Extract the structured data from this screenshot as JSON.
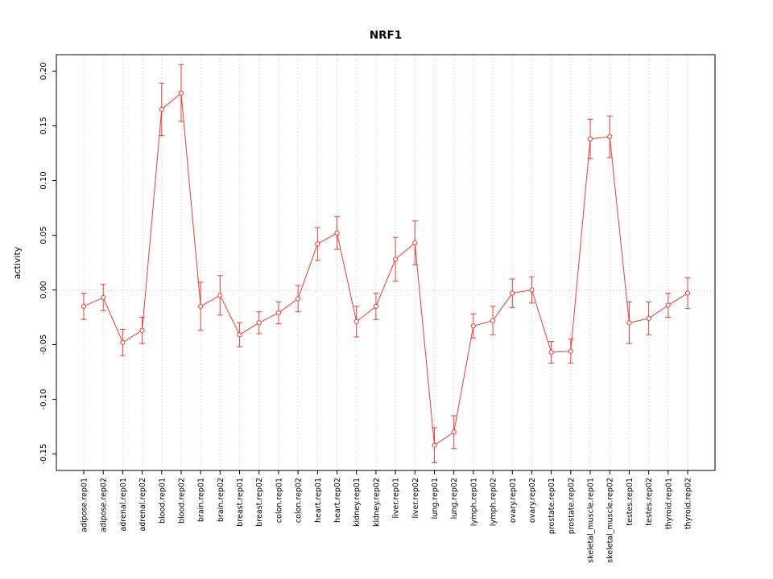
{
  "page": {
    "background": "#ffffff"
  },
  "chart_data": {
    "type": "line",
    "title": "NRF1",
    "ylabel": "activity",
    "xlabel": "",
    "marker": "open-circle",
    "error_bars": true,
    "grid": "vertical-dotted",
    "legend_position": "none",
    "series_color": "#ee3b32",
    "zero_line_color": "#ffb3b3",
    "grid_color": "#c9c9c9",
    "frame_color": "#000000",
    "ylim": [
      -0.165,
      0.215
    ],
    "yticks": [
      -0.15,
      -0.1,
      -0.05,
      0.0,
      0.05,
      0.1,
      0.15,
      0.2
    ],
    "categories": [
      "adipose.rep01",
      "adipose.rep02",
      "adrenal.rep01",
      "adrenal.rep02",
      "blood.rep01",
      "blood.rep02",
      "brain.rep01",
      "brain.rep02",
      "breast.rep01",
      "breast.rep02",
      "colon.rep01",
      "colon.rep02",
      "heart.rep01",
      "heart.rep02",
      "kidney.rep01",
      "kidney.rep02",
      "liver.rep01",
      "liver.rep02",
      "lung.rep01",
      "lung.rep02",
      "lymph.rep01",
      "lymph.rep02",
      "ovary.rep01",
      "ovary.rep02",
      "prostate.rep01",
      "prostate.rep02",
      "skeletal_muscle.rep01",
      "skeletal_muscle.rep02",
      "testes.rep01",
      "testes.rep02",
      "thyroid.rep01",
      "thyroid.rep02"
    ],
    "values": [
      -0.015,
      -0.007,
      -0.048,
      -0.037,
      0.165,
      0.18,
      -0.015,
      -0.005,
      -0.041,
      -0.03,
      -0.021,
      -0.008,
      0.042,
      0.052,
      -0.029,
      -0.015,
      0.028,
      0.043,
      -0.142,
      -0.13,
      -0.033,
      -0.028,
      -0.003,
      0.0,
      -0.057,
      -0.056,
      0.138,
      0.14,
      -0.03,
      -0.026,
      -0.014,
      -0.003
    ],
    "errors": [
      0.012,
      0.012,
      0.012,
      0.012,
      0.024,
      0.026,
      0.022,
      0.018,
      0.011,
      0.01,
      0.01,
      0.012,
      0.015,
      0.015,
      0.014,
      0.012,
      0.02,
      0.02,
      0.016,
      0.015,
      0.011,
      0.013,
      0.013,
      0.012,
      0.01,
      0.011,
      0.018,
      0.019,
      0.019,
      0.015,
      0.011,
      0.014
    ]
  }
}
